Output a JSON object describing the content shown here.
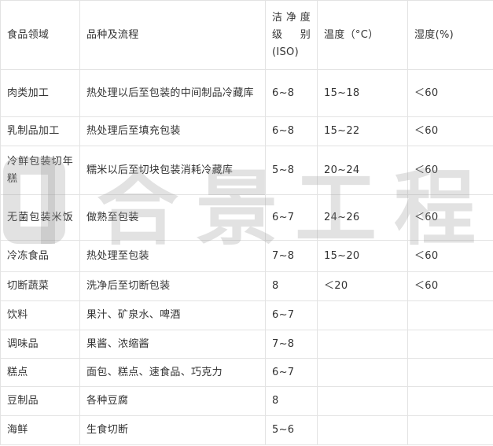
{
  "headers": [
    "食品领域",
    "品种及流程",
    "洁净度级别(ISO)",
    "温度（°C）",
    "湿度(%)"
  ],
  "rows": [
    [
      "肉类加工",
      "热处理以后至包装的中间制品冷藏库",
      "6~8",
      "15~18",
      "＜60"
    ],
    [
      "乳制品加工",
      "热处理后至填充包装",
      "6~8",
      "15~22",
      "＜60"
    ],
    [
      "冷鲜包装切年糕",
      "糯米以后至切块包装消耗冷藏库",
      "5~8",
      "20~24",
      "＜60"
    ],
    [
      "无菌包装米饭",
      "做熟至包装",
      "6~7",
      "24~26",
      "＜60"
    ],
    [
      "冷冻食品",
      "热处理至包装",
      "7~8",
      "15~20",
      "＜60"
    ],
    [
      "切断蔬菜",
      "洗净后至切断包装",
      "8",
      "＜20",
      "＜60"
    ],
    [
      "饮料",
      "果汁、矿泉水、啤酒",
      "6~7",
      "",
      ""
    ],
    [
      "调味品",
      "果酱、浓缩酱",
      "7~8",
      "",
      ""
    ],
    [
      "糕点",
      "面包、糕点、速食品、巧克力",
      "6~7",
      "",
      ""
    ],
    [
      "豆制品",
      "各种豆腐",
      "8",
      "",
      ""
    ],
    [
      "海鲜",
      "生食切断",
      "5~6",
      "",
      ""
    ]
  ],
  "watermark": "合景工程"
}
